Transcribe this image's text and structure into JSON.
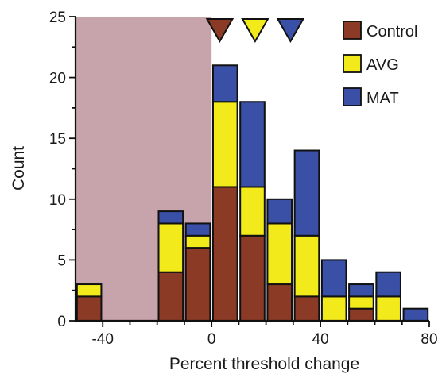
{
  "chart_data": {
    "type": "bar",
    "stacked": true,
    "xlabel": "Percent threshold change",
    "ylabel": "Count",
    "xlim": [
      -50,
      80
    ],
    "ylim": [
      0,
      25
    ],
    "x_ticks": [
      -40,
      0,
      40,
      80
    ],
    "y_ticks": [
      0,
      5,
      10,
      15,
      20,
      25
    ],
    "bin_width": 10,
    "bin_centers": [
      -45,
      -35,
      -25,
      -15,
      -5,
      5,
      15,
      25,
      35,
      45,
      55,
      65,
      75
    ],
    "series": [
      {
        "name": "Control",
        "color": "#8b3a26",
        "values": [
          2,
          0,
          0,
          4,
          6,
          11,
          7,
          3,
          2,
          0,
          1,
          0,
          0
        ]
      },
      {
        "name": "AVG",
        "color": "#f2ea1a",
        "values": [
          1,
          0,
          0,
          4,
          1,
          7,
          4,
          5,
          5,
          2,
          1,
          2,
          0
        ]
      },
      {
        "name": "MAT",
        "color": "#3a4fa6",
        "values": [
          0,
          0,
          0,
          1,
          1,
          3,
          7,
          2,
          7,
          3,
          1,
          2,
          1
        ]
      }
    ],
    "shaded_region": {
      "x_from": -50,
      "x_to": 0,
      "color": "#c7a3ab"
    },
    "mean_markers": [
      {
        "series": "Control",
        "x": 3
      },
      {
        "series": "AVG",
        "x": 16
      },
      {
        "series": "MAT",
        "x": 29
      }
    ],
    "legend": {
      "placement": "top-right",
      "items": [
        "Control",
        "AVG",
        "MAT"
      ]
    },
    "grid": false
  }
}
